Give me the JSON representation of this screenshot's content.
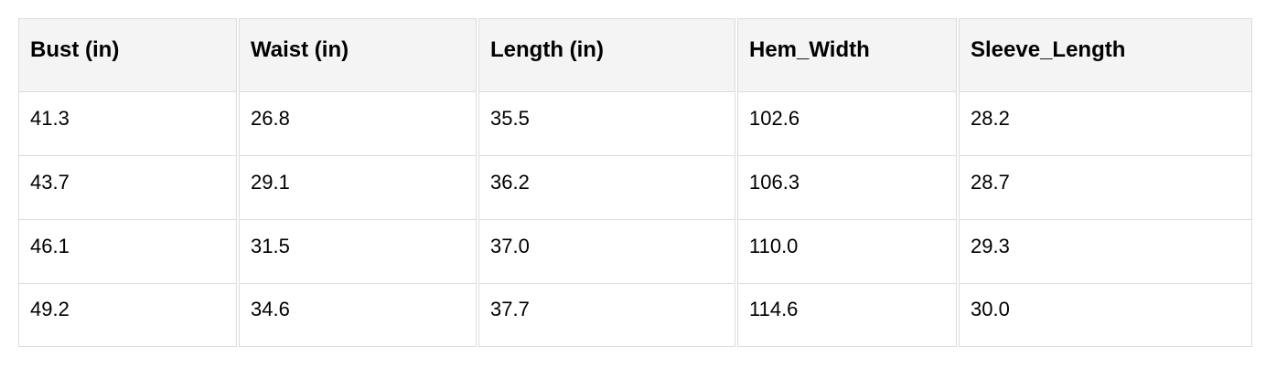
{
  "table": {
    "headers": [
      "Bust (in)",
      "Waist (in)",
      "Length (in)",
      "Hem_Width",
      "Sleeve_Length"
    ],
    "rows": [
      [
        "41.3",
        "26.8",
        "35.5",
        "102.6",
        "28.2"
      ],
      [
        "43.7",
        "29.1",
        "36.2",
        "106.3",
        "28.7"
      ],
      [
        "46.1",
        "31.5",
        "37.0",
        "110.0",
        "29.3"
      ],
      [
        "49.2",
        "34.6",
        "37.7",
        "114.6",
        "30.0"
      ]
    ]
  }
}
